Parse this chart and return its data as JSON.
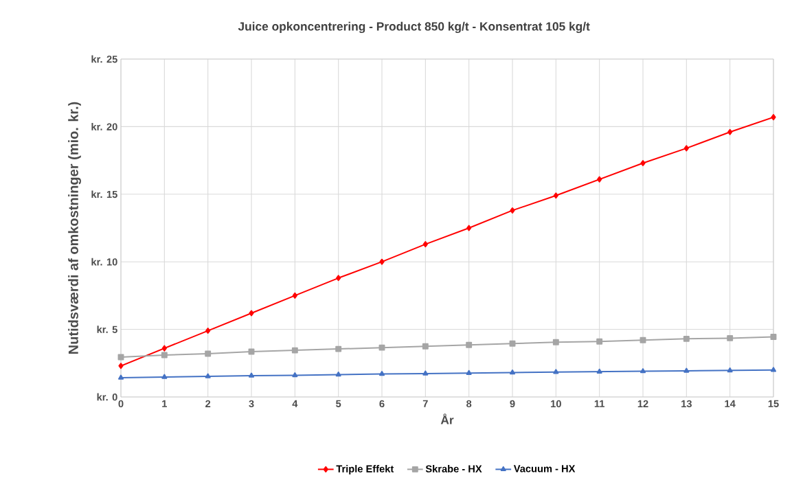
{
  "chart_data": {
    "type": "line",
    "title": "Juice opkoncentrering - Product 850 kg/t - Konsentrat 105 kg/t",
    "xlabel": "År",
    "ylabel": "Nutidsværdi af omkostninger (mio. kr.)",
    "x": [
      0,
      1,
      2,
      3,
      4,
      5,
      6,
      7,
      8,
      9,
      10,
      11,
      12,
      13,
      14,
      15
    ],
    "series": [
      {
        "name": "Triple Effekt",
        "color": "#ff0000",
        "marker": "diamond",
        "values": [
          2.3,
          3.6,
          4.9,
          6.2,
          7.5,
          8.8,
          10.0,
          11.3,
          12.5,
          13.8,
          14.9,
          16.1,
          17.3,
          18.4,
          19.6,
          20.7
        ]
      },
      {
        "name": "Skrabe - HX",
        "color": "#a5a5a5",
        "marker": "square",
        "values": [
          2.95,
          3.1,
          3.2,
          3.35,
          3.45,
          3.55,
          3.65,
          3.75,
          3.85,
          3.95,
          4.05,
          4.1,
          4.2,
          4.3,
          4.35,
          4.45
        ]
      },
      {
        "name": "Vacuum - HX",
        "color": "#4472c4",
        "marker": "triangle",
        "values": [
          1.42,
          1.47,
          1.52,
          1.57,
          1.6,
          1.65,
          1.7,
          1.73,
          1.77,
          1.8,
          1.84,
          1.87,
          1.9,
          1.93,
          1.96,
          1.99
        ]
      }
    ],
    "xlim": [
      0,
      15
    ],
    "xticks": [
      0,
      1,
      2,
      3,
      4,
      5,
      6,
      7,
      8,
      9,
      10,
      11,
      12,
      13,
      14,
      15
    ],
    "ylim": [
      0,
      25
    ],
    "yticks": [
      {
        "value": 0,
        "label": "kr. 0"
      },
      {
        "value": 5,
        "label": "kr. 5"
      },
      {
        "value": 10,
        "label": "kr. 10"
      },
      {
        "value": 15,
        "label": "kr. 15"
      },
      {
        "value": 20,
        "label": "kr. 20"
      },
      {
        "value": 25,
        "label": "kr. 25"
      }
    ],
    "grid": true,
    "legend": "bottom",
    "line_style": "solid"
  }
}
